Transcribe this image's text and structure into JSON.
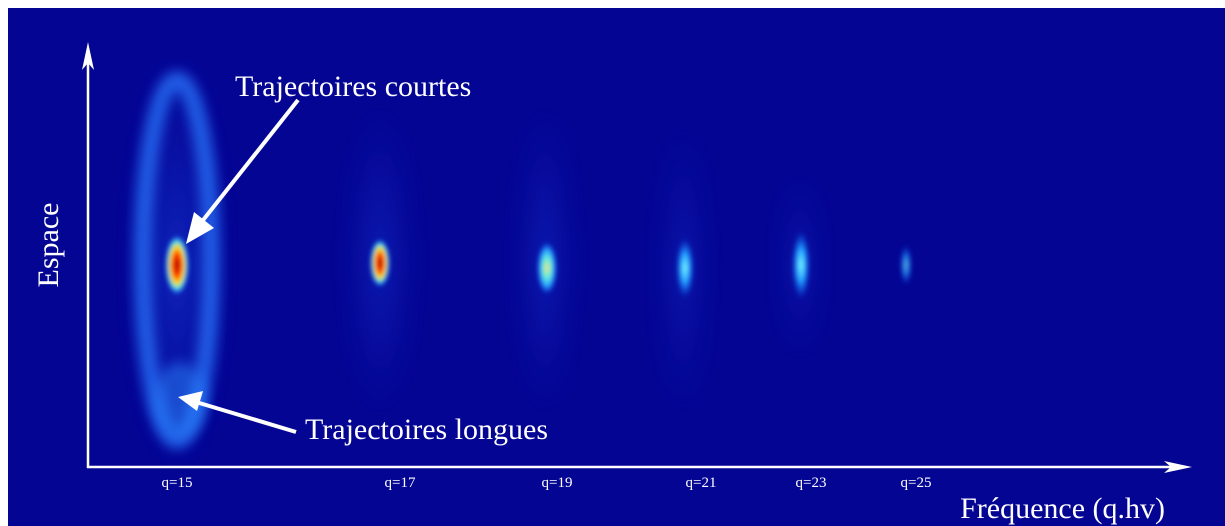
{
  "axes": {
    "x_label": "Fréquence (q.hv)",
    "y_label": "Espace"
  },
  "harmonics": [
    "q=15",
    "q=17",
    "q=19",
    "q=21",
    "q=23",
    "q=25"
  ],
  "annotations": {
    "short": "Trajectoires courtes",
    "long": "Trajectoires longues"
  }
}
